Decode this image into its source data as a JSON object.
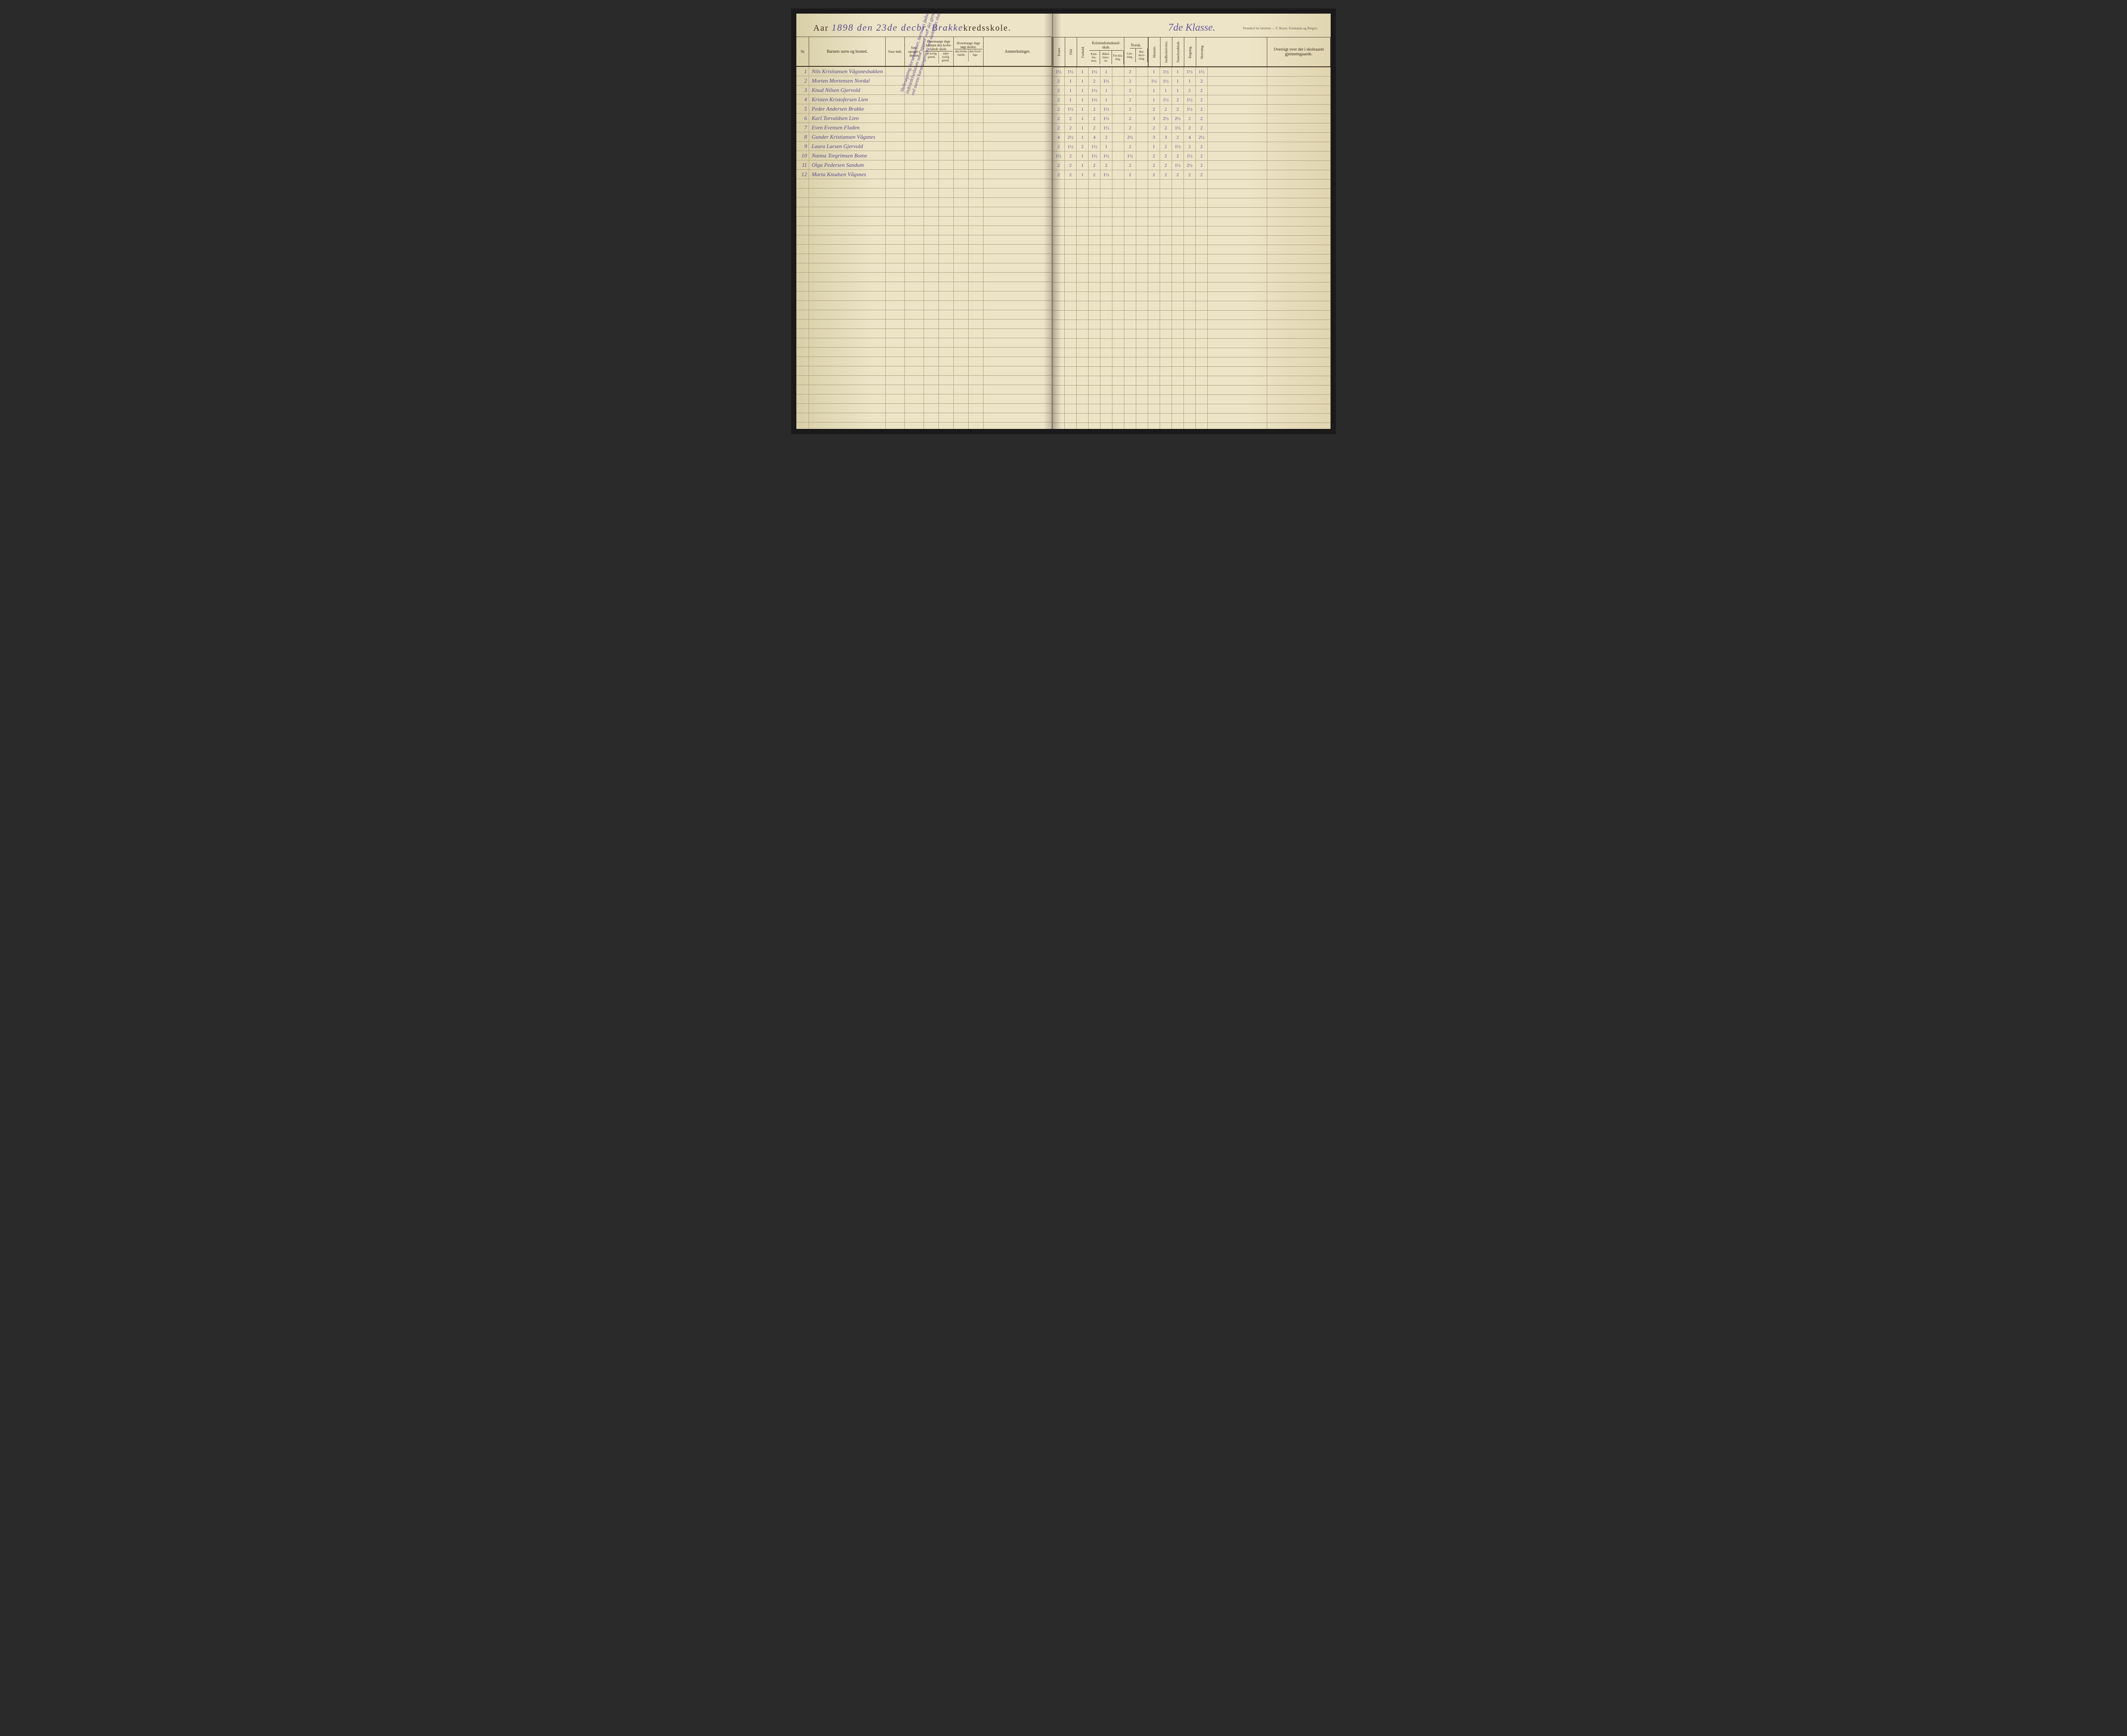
{
  "header": {
    "aar_label": "Aar",
    "year_handwritten": "1898 den 23de decbr.",
    "school_handwritten": "Brakke",
    "kredsskole": "kredsskole.",
    "klasse": "7de Klasse.",
    "publisher": "Protokol for læreren — F. Beyer, Kristiania og Bergen."
  },
  "columns_left": {
    "num": "№",
    "name": "Barnets navn og bosted.",
    "born": "Naar født.",
    "admitted": "Naar optaget i skolen.",
    "absent_top": "Hvormange dage forsømt den lovbe-falede skole.",
    "absent_sub1": "af lovlig grund.",
    "absent_sub2": "uden lovlig grund.",
    "attended_top": "Hvormange dage søgt skolen.",
    "attended_sub1": "den lovbe-falede.",
    "attended_sub2": "den frivil-lige.",
    "remarks": "Anmerkninger."
  },
  "columns_right": {
    "evner": "Evner.",
    "flid": "Flid.",
    "forhold": "Forhold.",
    "kristendom": "Kristendomskund-skab.",
    "krist_sub1": "Kate-kis-mus.",
    "krist_sub2": "Bibel-histo-rie.",
    "krist_sub3": "For-kla-ring.",
    "norsk": "Norsk.",
    "norsk_sub1": "Læs-ning.",
    "norsk_sub2": "Ret-skriv-ning.",
    "historie": "Historie.",
    "jordbeskrivelse": "Jordbeskrivelse.",
    "naturkundskab": "Naturkundskab.",
    "regning": "Regning.",
    "skrivning": "Skrivning.",
    "oversigt": "Oversigt over det i skoleaaret gjennemgaaede."
  },
  "students": [
    {
      "n": "1",
      "name": "Nils Kristiansen Vågsnesbakken",
      "grades": [
        "1½",
        "1½",
        "1",
        "1½",
        "1",
        "",
        "2",
        "",
        "1",
        "1½",
        "1",
        "1½",
        "1½"
      ]
    },
    {
      "n": "2",
      "name": "Morten Mortensen Nordal",
      "grades": [
        "2",
        "1",
        "1",
        "2",
        "1½",
        "",
        "2",
        "",
        "1½",
        "1½",
        "1",
        "1",
        "2"
      ]
    },
    {
      "n": "3",
      "name": "Knud Nilsen Gjervold",
      "grades": [
        "2",
        "1",
        "1",
        "1½",
        "1",
        "",
        "2",
        "",
        "1",
        "1",
        "1",
        "2",
        "2"
      ]
    },
    {
      "n": "4",
      "name": "Kristen Kristofersen Lien",
      "grades": [
        "2",
        "1",
        "1",
        "1½",
        "1",
        "",
        "2",
        "",
        "1",
        "1½",
        "2",
        "1½",
        "2"
      ]
    },
    {
      "n": "5",
      "name": "Peder Andersen Brakke",
      "grades": [
        "2",
        "1½",
        "1",
        "2",
        "1½",
        "",
        "2",
        "",
        "2",
        "2",
        "2",
        "1½",
        "2"
      ]
    },
    {
      "n": "6",
      "name": "Karl Torvaldsen Lien",
      "grades": [
        "2",
        "2",
        "1",
        "2",
        "1½",
        "",
        "2",
        "",
        "3",
        "2½",
        "2½",
        "2",
        "2"
      ]
    },
    {
      "n": "7",
      "name": "Even Evensen Fladen",
      "grades": [
        "2",
        "2",
        "1",
        "2",
        "1½",
        "",
        "2",
        "",
        "2",
        "2",
        "1½",
        "2",
        "2"
      ]
    },
    {
      "n": "8",
      "name": "Gunder Kristiansen Vågsnes",
      "grades": [
        "4",
        "2½",
        "1",
        "4",
        "2",
        "",
        "2½",
        "",
        "3",
        "3",
        "2",
        "4",
        "2½"
      ]
    },
    {
      "n": "9",
      "name": "Laura Larsen Gjervold",
      "grades": [
        "2",
        "1½",
        "2",
        "1½",
        "1",
        "",
        "2",
        "",
        "1",
        "2",
        "1½",
        "2",
        "2"
      ]
    },
    {
      "n": "10",
      "name": "Nanna Torgrimsen Botne",
      "grades": [
        "1½",
        "2",
        "1",
        "1½",
        "1½",
        "",
        "1½",
        "",
        "2",
        "2",
        "2",
        "1½",
        "2"
      ]
    },
    {
      "n": "11",
      "name": "Olga Pedersen Sandum",
      "grades": [
        "2",
        "2",
        "1",
        "2",
        "2",
        "",
        "2",
        "",
        "2",
        "2",
        "1½",
        "2½",
        "2"
      ]
    },
    {
      "n": "12",
      "name": "Marta Knudsen Vågsnes",
      "grades": [
        "2",
        "2",
        "1",
        "2",
        "1½",
        "",
        "2",
        "",
        "2",
        "2",
        "2",
        "2",
        "2"
      ]
    }
  ],
  "diagonal_note": "Skolesøgning, forsømmelser, barnenes fødsels- og indtrædelsedatum samt opgave over det gjennemgaaede angives ved aarets karaktergivning ved skoleårets slutning.",
  "blank_rows": 30
}
